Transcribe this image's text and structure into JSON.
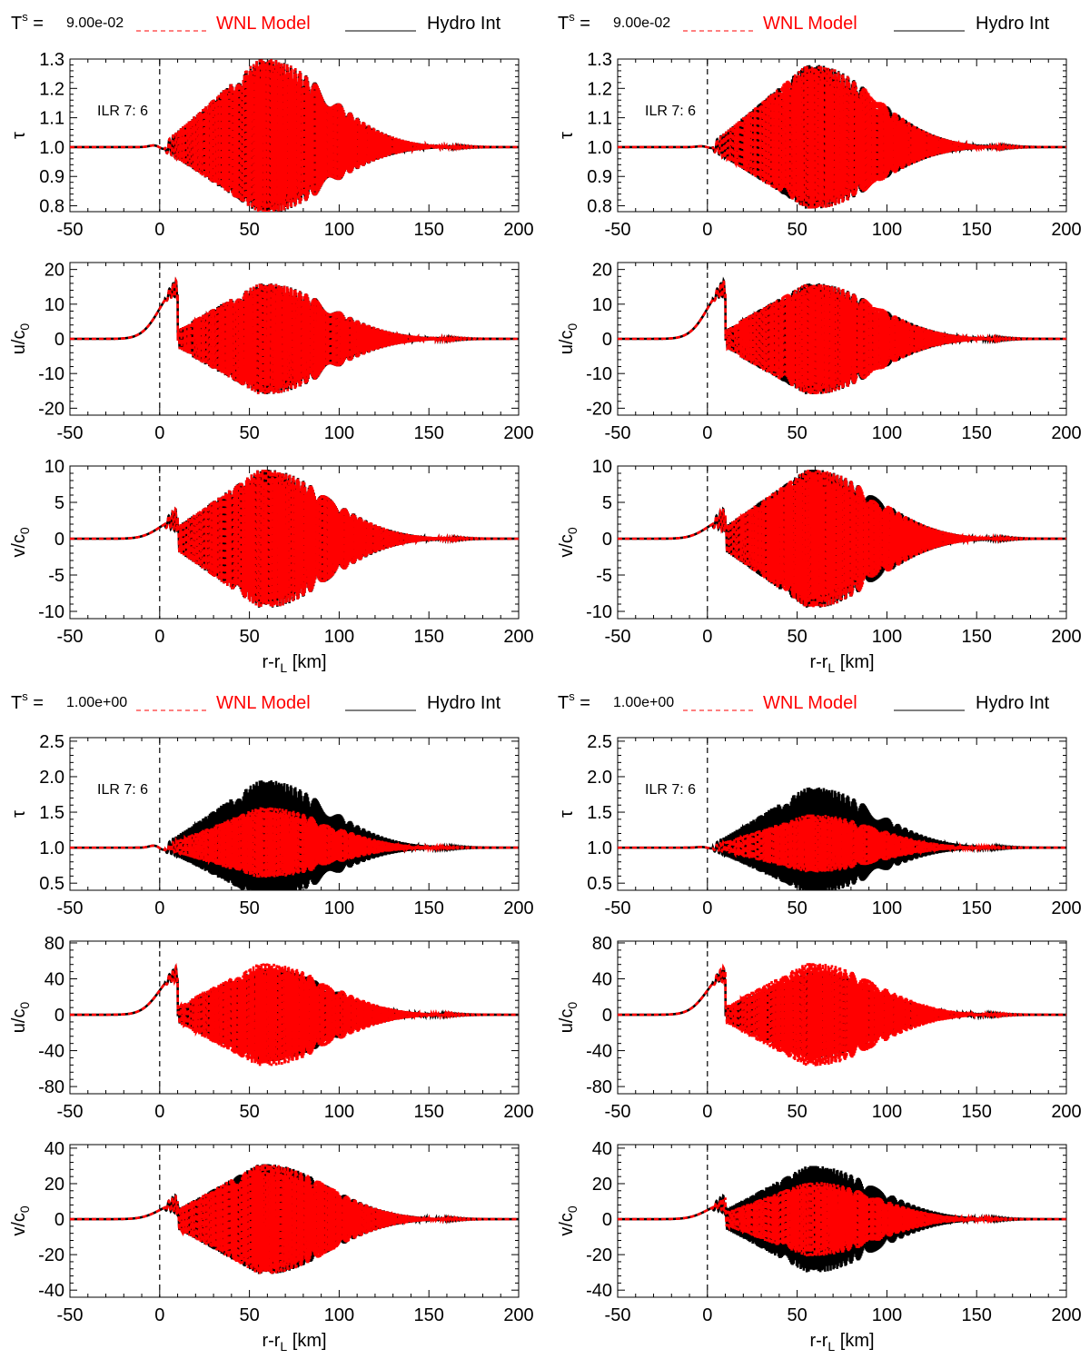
{
  "figure": {
    "groups": [
      {
        "ts_label": "T",
        "ts_superscript": "s",
        "ts_equals": " = ",
        "ts_value": "9.00e-02",
        "legend_model": "WNL Model",
        "legend_hydro": "Hydro Int"
      },
      {
        "ts_label": "T",
        "ts_superscript": "s",
        "ts_equals": " = ",
        "ts_value": "1.00e+00",
        "legend_model": "WNL Model",
        "legend_hydro": "Hydro Int"
      }
    ],
    "annotation": "ILR 7: 6",
    "xlabel_main": "r-r",
    "xlabel_sub": "L",
    "xlabel_unit": " [km]",
    "colors": {
      "model": "#ff0000",
      "hydro": "#000000",
      "axis": "#000000"
    }
  },
  "chart_data": [
    {
      "type": "line",
      "group": 0,
      "column": 0,
      "variable": "tau",
      "ylabel": "τ",
      "ylabel_sub": "",
      "xlim": [
        -50,
        200
      ],
      "ylim": [
        0.78,
        1.3
      ],
      "yticks": [
        0.8,
        0.9,
        1.0,
        1.1,
        1.2,
        1.3
      ],
      "ytick_labels": [
        "0.8",
        "0.9",
        "1.0",
        "1.1",
        "1.2",
        "1.3"
      ],
      "xticks": [
        -50,
        0,
        50,
        100,
        150,
        200
      ],
      "xtick_labels": [
        "-50",
        "0",
        "50",
        "100",
        "150",
        "200"
      ],
      "baseline": 1.0,
      "envelope_amp": 0.3,
      "pre_bump": 0.006,
      "model_shift": 0.0,
      "model_scale": 1.0,
      "x_label_shown": false,
      "annotation_shown": true,
      "series": [
        {
          "name": "WNL Model",
          "style": "dashed"
        },
        {
          "name": "Hydro Int",
          "style": "solid"
        }
      ]
    },
    {
      "type": "line",
      "group": 0,
      "column": 0,
      "variable": "u",
      "ylabel": "u/c",
      "ylabel_sub": "0",
      "xlim": [
        -50,
        200
      ],
      "ylim": [
        -22,
        22
      ],
      "yticks": [
        -20,
        -10,
        0,
        10,
        20
      ],
      "ytick_labels": [
        "-20",
        "-10",
        "0",
        "10",
        "20"
      ],
      "xticks": [
        -50,
        0,
        50,
        100,
        150,
        200
      ],
      "xtick_labels": [
        "-50",
        "0",
        "50",
        "100",
        "150",
        "200"
      ],
      "baseline": 0,
      "envelope_amp": 16,
      "pre_bump": 14.5,
      "model_shift": 0.0,
      "model_scale": 1.0,
      "x_label_shown": false,
      "annotation_shown": false,
      "series": [
        {
          "name": "WNL Model",
          "style": "dashed"
        },
        {
          "name": "Hydro Int",
          "style": "solid"
        }
      ]
    },
    {
      "type": "line",
      "group": 0,
      "column": 0,
      "variable": "v",
      "ylabel": "v/c",
      "ylabel_sub": "0",
      "xlim": [
        -50,
        200
      ],
      "ylim": [
        -11,
        10
      ],
      "yticks": [
        -10,
        -5,
        0,
        5,
        10
      ],
      "ytick_labels": [
        "-10",
        "-5",
        "0",
        "5",
        "10"
      ],
      "xticks": [
        -50,
        0,
        50,
        100,
        150,
        200
      ],
      "xtick_labels": [
        "-50",
        "0",
        "50",
        "100",
        "150",
        "200"
      ],
      "baseline": 0,
      "envelope_amp": 9.5,
      "pre_bump": 2.6,
      "model_shift": 0.0,
      "model_scale": 1.0,
      "x_label_shown": true,
      "annotation_shown": false,
      "series": [
        {
          "name": "WNL Model",
          "style": "dashed"
        },
        {
          "name": "Hydro Int",
          "style": "solid"
        }
      ]
    },
    {
      "type": "line",
      "group": 0,
      "column": 1,
      "variable": "tau",
      "ylabel": "τ",
      "ylabel_sub": "",
      "xlim": [
        -50,
        200
      ],
      "ylim": [
        0.78,
        1.3
      ],
      "yticks": [
        0.8,
        0.9,
        1.0,
        1.1,
        1.2,
        1.3
      ],
      "ytick_labels": [
        "0.8",
        "0.9",
        "1.0",
        "1.1",
        "1.2",
        "1.3"
      ],
      "xticks": [
        -50,
        0,
        50,
        100,
        150,
        200
      ],
      "xtick_labels": [
        "-50",
        "0",
        "50",
        "100",
        "150",
        "200"
      ],
      "baseline": 1.0,
      "envelope_amp": 0.28,
      "pre_bump": 0.003,
      "model_shift": 0.25,
      "model_scale": 1.0,
      "x_label_shown": false,
      "annotation_shown": true,
      "series": [
        {
          "name": "WNL Model",
          "style": "dashed"
        },
        {
          "name": "Hydro Int",
          "style": "solid"
        }
      ]
    },
    {
      "type": "line",
      "group": 0,
      "column": 1,
      "variable": "u",
      "ylabel": "u/c",
      "ylabel_sub": "0",
      "xlim": [
        -50,
        200
      ],
      "ylim": [
        -22,
        22
      ],
      "yticks": [
        -20,
        -10,
        0,
        10,
        20
      ],
      "ytick_labels": [
        "-20",
        "-10",
        "0",
        "10",
        "20"
      ],
      "xticks": [
        -50,
        0,
        50,
        100,
        150,
        200
      ],
      "xtick_labels": [
        "-50",
        "0",
        "50",
        "100",
        "150",
        "200"
      ],
      "baseline": 0,
      "envelope_amp": 16,
      "pre_bump": 14.5,
      "model_shift": 0.25,
      "model_scale": 1.0,
      "x_label_shown": false,
      "annotation_shown": false,
      "series": [
        {
          "name": "WNL Model",
          "style": "dashed"
        },
        {
          "name": "Hydro Int",
          "style": "solid"
        }
      ]
    },
    {
      "type": "line",
      "group": 0,
      "column": 1,
      "variable": "v",
      "ylabel": "v/c",
      "ylabel_sub": "0",
      "xlim": [
        -50,
        200
      ],
      "ylim": [
        -11,
        10
      ],
      "yticks": [
        -10,
        -5,
        0,
        5,
        10
      ],
      "ytick_labels": [
        "-10",
        "-5",
        "0",
        "5",
        "10"
      ],
      "xticks": [
        -50,
        0,
        50,
        100,
        150,
        200
      ],
      "xtick_labels": [
        "-50",
        "0",
        "50",
        "100",
        "150",
        "200"
      ],
      "baseline": 0,
      "envelope_amp": 9.5,
      "pre_bump": 2.6,
      "model_shift": 0.25,
      "model_scale": 1.0,
      "x_label_shown": true,
      "annotation_shown": false,
      "series": [
        {
          "name": "WNL Model",
          "style": "dashed"
        },
        {
          "name": "Hydro Int",
          "style": "solid"
        }
      ]
    },
    {
      "type": "line",
      "group": 1,
      "column": 0,
      "variable": "tau",
      "ylabel": "τ",
      "ylabel_sub": "",
      "xlim": [
        -50,
        200
      ],
      "ylim": [
        0.4,
        2.55
      ],
      "yticks": [
        0.5,
        1.0,
        1.5,
        2.0,
        2.5
      ],
      "ytick_labels": [
        "0.5",
        "1.0",
        "1.5",
        "2.0",
        "2.5"
      ],
      "xticks": [
        -50,
        0,
        50,
        100,
        150,
        200
      ],
      "xtick_labels": [
        "-50",
        "0",
        "50",
        "100",
        "150",
        "200"
      ],
      "baseline": 1.0,
      "envelope_amp": 0.95,
      "pre_bump": 0.03,
      "model_shift": 0.15,
      "model_scale": 0.6,
      "x_label_shown": false,
      "annotation_shown": true,
      "series": [
        {
          "name": "WNL Model",
          "style": "dashed"
        },
        {
          "name": "Hydro Int",
          "style": "solid"
        }
      ]
    },
    {
      "type": "line",
      "group": 1,
      "column": 0,
      "variable": "u",
      "ylabel": "u/c",
      "ylabel_sub": "0",
      "xlim": [
        -50,
        200
      ],
      "ylim": [
        -88,
        82
      ],
      "yticks": [
        -80,
        -40,
        0,
        40,
        80
      ],
      "ytick_labels": [
        "-80",
        "-40",
        "0",
        "40",
        "80"
      ],
      "xticks": [
        -50,
        0,
        50,
        100,
        150,
        200
      ],
      "xtick_labels": [
        "-50",
        "0",
        "50",
        "100",
        "150",
        "200"
      ],
      "baseline": 0,
      "envelope_amp": 52,
      "pre_bump": 45,
      "model_shift": 0.35,
      "model_scale": 1.1,
      "x_label_shown": false,
      "annotation_shown": false,
      "series": [
        {
          "name": "WNL Model",
          "style": "dashed"
        },
        {
          "name": "Hydro Int",
          "style": "solid"
        }
      ]
    },
    {
      "type": "line",
      "group": 1,
      "column": 0,
      "variable": "v",
      "ylabel": "v/c",
      "ylabel_sub": "0",
      "xlim": [
        -50,
        200
      ],
      "ylim": [
        -44,
        42
      ],
      "yticks": [
        -40,
        -20,
        0,
        20,
        40
      ],
      "ytick_labels": [
        "-40",
        "-20",
        "0",
        "20",
        "40"
      ],
      "xticks": [
        -50,
        0,
        50,
        100,
        150,
        200
      ],
      "xtick_labels": [
        "-50",
        "0",
        "50",
        "100",
        "150",
        "200"
      ],
      "baseline": 0,
      "envelope_amp": 31,
      "pre_bump": 8.5,
      "model_shift": 0.15,
      "model_scale": 1.0,
      "x_label_shown": true,
      "annotation_shown": false,
      "series": [
        {
          "name": "WNL Model",
          "style": "dashed"
        },
        {
          "name": "Hydro Int",
          "style": "solid"
        }
      ]
    },
    {
      "type": "line",
      "group": 1,
      "column": 1,
      "variable": "tau",
      "ylabel": "τ",
      "ylabel_sub": "",
      "xlim": [
        -50,
        200
      ],
      "ylim": [
        0.4,
        2.55
      ],
      "yticks": [
        0.5,
        1.0,
        1.5,
        2.0,
        2.5
      ],
      "ytick_labels": [
        "0.5",
        "1.0",
        "1.5",
        "2.0",
        "2.5"
      ],
      "xticks": [
        -50,
        0,
        50,
        100,
        150,
        200
      ],
      "xtick_labels": [
        "-50",
        "0",
        "50",
        "100",
        "150",
        "200"
      ],
      "baseline": 1.0,
      "envelope_amp": 0.85,
      "pre_bump": 0.01,
      "model_shift": 1.4,
      "model_scale": 0.55,
      "x_label_shown": false,
      "annotation_shown": true,
      "series": [
        {
          "name": "WNL Model",
          "style": "dashed"
        },
        {
          "name": "Hydro Int",
          "style": "solid"
        }
      ]
    },
    {
      "type": "line",
      "group": 1,
      "column": 1,
      "variable": "u",
      "ylabel": "u/c",
      "ylabel_sub": "0",
      "xlim": [
        -50,
        200
      ],
      "ylim": [
        -88,
        82
      ],
      "yticks": [
        -80,
        -40,
        0,
        40,
        80
      ],
      "ytick_labels": [
        "-80",
        "-40",
        "0",
        "40",
        "80"
      ],
      "xticks": [
        -50,
        0,
        50,
        100,
        150,
        200
      ],
      "xtick_labels": [
        "-50",
        "0",
        "50",
        "100",
        "150",
        "200"
      ],
      "baseline": 0,
      "envelope_amp": 48,
      "pre_bump": 45,
      "model_shift": 1.4,
      "model_scale": 1.2,
      "x_label_shown": false,
      "annotation_shown": false,
      "series": [
        {
          "name": "WNL Model",
          "style": "dashed"
        },
        {
          "name": "Hydro Int",
          "style": "solid"
        }
      ]
    },
    {
      "type": "line",
      "group": 1,
      "column": 1,
      "variable": "v",
      "ylabel": "v/c",
      "ylabel_sub": "0",
      "xlim": [
        -50,
        200
      ],
      "ylim": [
        -44,
        42
      ],
      "yticks": [
        -40,
        -20,
        0,
        20,
        40
      ],
      "ytick_labels": [
        "-40",
        "-20",
        "0",
        "20",
        "40"
      ],
      "xticks": [
        -50,
        0,
        50,
        100,
        150,
        200
      ],
      "xtick_labels": [
        "-50",
        "0",
        "50",
        "100",
        "150",
        "200"
      ],
      "baseline": 0,
      "envelope_amp": 30,
      "pre_bump": 8.5,
      "model_shift": 1.4,
      "model_scale": 0.7,
      "x_label_shown": true,
      "annotation_shown": false,
      "series": [
        {
          "name": "WNL Model",
          "style": "dashed"
        },
        {
          "name": "Hydro Int",
          "style": "solid"
        }
      ]
    }
  ]
}
